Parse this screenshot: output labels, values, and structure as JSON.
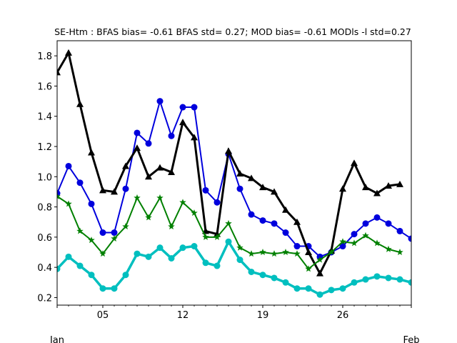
{
  "chart_data": {
    "type": "line",
    "title": "SE-Htm   : BFAS bias= -0.61 BFAS std= 0.27; MOD bias= -0.61 MODls -l std=0.27",
    "xlabel": "",
    "ylabel": "",
    "x": [
      1,
      2,
      3,
      4,
      5,
      6,
      7,
      8,
      9,
      10,
      11,
      12,
      13,
      14,
      15,
      16,
      17,
      18,
      19,
      20,
      21,
      22,
      23,
      24,
      25,
      26,
      27,
      28,
      29,
      30,
      31,
      32
    ],
    "xlim": [
      1,
      32
    ],
    "ylim": [
      0.15,
      1.9
    ],
    "x_ticks": [
      {
        "value": 5,
        "label": "05"
      },
      {
        "value": 12,
        "label": "12"
      },
      {
        "value": 19,
        "label": "19"
      },
      {
        "value": 26,
        "label": "26"
      }
    ],
    "x_month_labels": [
      {
        "value": 1,
        "label": "Jan"
      },
      {
        "value": 32,
        "label": "Feb"
      }
    ],
    "y_ticks": [
      0.2,
      0.4,
      0.6,
      0.8,
      1.0,
      1.2,
      1.4,
      1.6,
      1.8
    ],
    "grid": false,
    "series": [
      {
        "color": "#0000dd",
        "marker": "circle",
        "line_width": 2,
        "x": [
          1,
          2,
          3,
          4,
          5,
          6,
          7,
          8,
          9,
          10,
          11,
          12,
          13,
          14,
          15,
          16,
          17,
          18,
          19,
          20,
          21,
          22,
          23,
          24,
          25,
          26,
          27,
          28,
          29,
          30,
          31,
          32
        ],
        "values": [
          0.89,
          1.07,
          0.96,
          0.82,
          0.63,
          0.63,
          0.92,
          1.29,
          1.22,
          1.5,
          1.27,
          1.46,
          1.46,
          0.91,
          0.83,
          1.15,
          0.92,
          0.75,
          0.71,
          0.69,
          0.63,
          0.54,
          0.54,
          0.47,
          0.5,
          0.54,
          0.62,
          0.69,
          0.73,
          0.69,
          0.64,
          0.59
        ]
      },
      {
        "color": "#000000",
        "marker": "triangle",
        "line_width": 3,
        "x": [
          1,
          2,
          3,
          4,
          5,
          6,
          7,
          8,
          9,
          10,
          11,
          12,
          13,
          14,
          15,
          16,
          17,
          18,
          19,
          20,
          21,
          22,
          23,
          24,
          25,
          26,
          27,
          28,
          29,
          30,
          31
        ],
        "values": [
          1.69,
          1.82,
          1.48,
          1.16,
          0.91,
          0.9,
          1.07,
          1.19,
          1.0,
          1.06,
          1.03,
          1.36,
          1.26,
          0.64,
          0.62,
          1.17,
          1.02,
          0.99,
          0.93,
          0.9,
          0.78,
          0.7,
          0.5,
          0.36,
          0.51,
          0.92,
          1.09,
          0.93,
          0.89,
          0.94,
          0.95
        ]
      },
      {
        "color": "#008000",
        "marker": "star",
        "line_width": 2,
        "x": [
          1,
          2,
          3,
          4,
          5,
          6,
          7,
          8,
          9,
          10,
          11,
          12,
          13,
          14,
          15,
          16,
          17,
          18,
          19,
          20,
          21,
          22,
          23,
          24,
          25,
          26,
          27,
          28,
          29,
          30,
          31
        ],
        "values": [
          0.87,
          0.82,
          0.64,
          0.58,
          0.49,
          0.59,
          0.67,
          0.86,
          0.73,
          0.86,
          0.67,
          0.83,
          0.76,
          0.6,
          0.6,
          0.69,
          0.53,
          0.49,
          0.5,
          0.49,
          0.5,
          0.49,
          0.39,
          0.45,
          0.5,
          0.57,
          0.56,
          0.61,
          0.56,
          0.52,
          0.5
        ]
      },
      {
        "color": "#00bfbf",
        "marker": "circle",
        "line_width": 3.5,
        "x": [
          1,
          2,
          3,
          4,
          5,
          6,
          7,
          8,
          9,
          10,
          11,
          12,
          13,
          14,
          15,
          16,
          17,
          18,
          19,
          20,
          21,
          22,
          23,
          24,
          25,
          26,
          27,
          28,
          29,
          30,
          31,
          32
        ],
        "values": [
          0.39,
          0.47,
          0.41,
          0.35,
          0.26,
          0.26,
          0.35,
          0.49,
          0.47,
          0.53,
          0.46,
          0.53,
          0.54,
          0.43,
          0.41,
          0.57,
          0.45,
          0.37,
          0.35,
          0.33,
          0.3,
          0.26,
          0.26,
          0.22,
          0.25,
          0.26,
          0.3,
          0.32,
          0.34,
          0.33,
          0.32,
          0.3
        ]
      }
    ]
  }
}
